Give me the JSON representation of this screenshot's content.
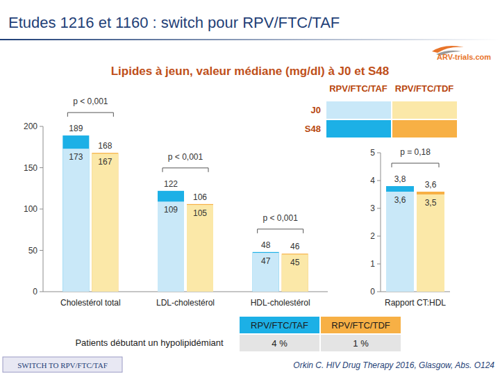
{
  "header": {
    "title": "Etudes 1216 et 1160 : switch pour RPV/FTC/TAF",
    "logo": "ARV-trials.com",
    "subtitle": "Lipides à jeun, valeur médiane (mg/dl) à J0 et S48"
  },
  "chart_data": [
    {
      "type": "bar",
      "categories": [
        "Cholestérol total",
        "LDL-cholestérol",
        "HDL-cholestérol"
      ],
      "series": [
        {
          "name": "RPV/FTC/TAF",
          "period": "J0",
          "color": "#c9e8f8",
          "values": [
            173,
            109,
            47
          ]
        },
        {
          "name": "RPV/FTC/TAF",
          "period": "S48",
          "color": "#1cb0e6",
          "values": [
            189,
            122,
            48
          ]
        },
        {
          "name": "RPV/FTC/TDF",
          "period": "J0",
          "color": "#fbe8a8",
          "values": [
            167,
            105,
            45
          ]
        },
        {
          "name": "RPV/FTC/TDF",
          "period": "S48",
          "color": "#f7b045",
          "values": [
            168,
            106,
            46
          ]
        }
      ],
      "annotations": [
        "p < 0,001",
        "p < 0,001",
        "p < 0,001"
      ],
      "ylim": [
        0,
        200
      ],
      "yticks": [
        0,
        50,
        100,
        150,
        200
      ],
      "grid": false,
      "data_labels": true,
      "legend": "top-right"
    },
    {
      "type": "bar",
      "categories": [
        "Rapport CT:HDL"
      ],
      "series": [
        {
          "name": "RPV/FTC/TAF",
          "period": "J0",
          "color": "#c9e8f8",
          "values": [
            3.6
          ],
          "value_labels": [
            "3,6"
          ]
        },
        {
          "name": "RPV/FTC/TAF",
          "period": "S48",
          "color": "#1cb0e6",
          "values": [
            3.8
          ],
          "value_labels": [
            "3,8"
          ]
        },
        {
          "name": "RPV/FTC/TDF",
          "period": "J0",
          "color": "#fbe8a8",
          "values": [
            3.5
          ],
          "value_labels": [
            "3,5"
          ]
        },
        {
          "name": "RPV/FTC/TDF",
          "period": "S48",
          "color": "#f7b045",
          "values": [
            3.6
          ],
          "value_labels": [
            "3,6"
          ]
        }
      ],
      "annotations": [
        "p = 0,18"
      ],
      "ylim": [
        0,
        5
      ],
      "yticks": [
        0,
        1,
        2,
        3,
        4,
        5
      ],
      "grid": false,
      "data_labels": true
    }
  ],
  "table": {
    "columns": [
      "RPV/FTC/TAF",
      "RPV/FTC/TDF"
    ],
    "rows": [
      {
        "label": "Patients débutant un hypolipidémiant",
        "cells": [
          "4 %",
          "1 %"
        ]
      }
    ]
  },
  "footer": {
    "badge": "SWITCH TO RPV/FTC/TAF",
    "reference": "Orkin C. HIV Drug Therapy 2016, Glasgow, Abs. O124"
  }
}
